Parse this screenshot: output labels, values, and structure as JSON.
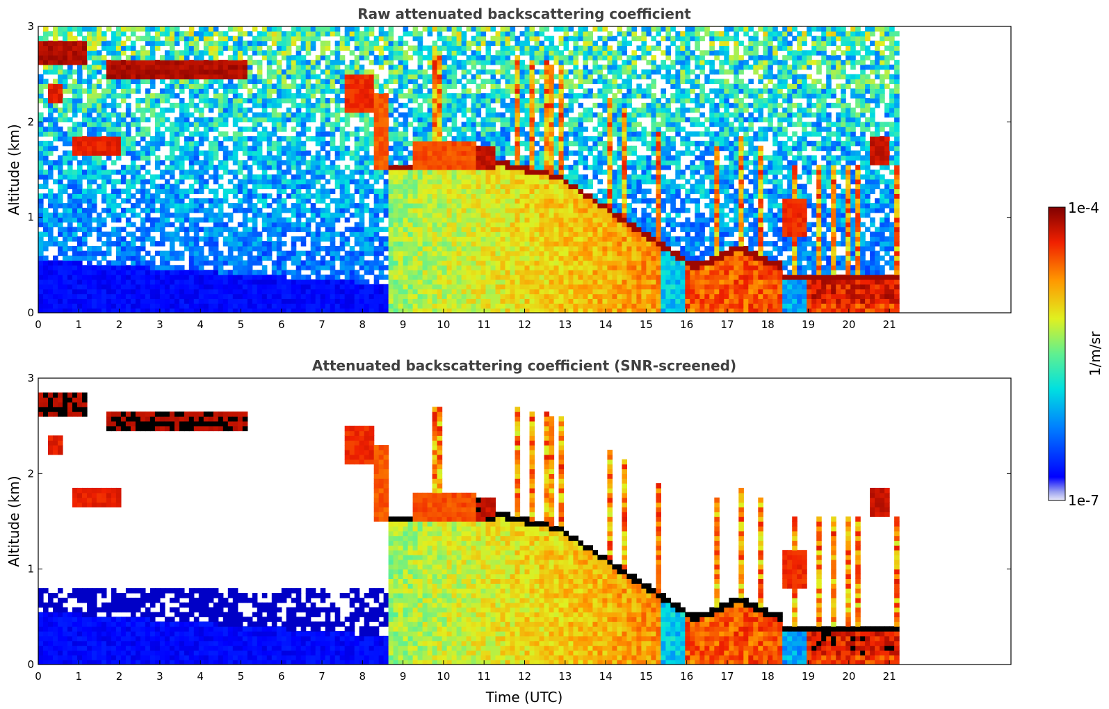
{
  "chart_data": [
    {
      "type": "heatmap",
      "title": "Raw attenuated backscattering coefficient",
      "xlabel": "",
      "ylabel": "Altitude (km)",
      "xlim": [
        0,
        24
      ],
      "ylim": [
        0,
        3
      ],
      "xticks": [
        "0",
        "1",
        "2",
        "3",
        "4",
        "5",
        "6",
        "7",
        "8",
        "9",
        "10",
        "11",
        "12",
        "13",
        "14",
        "15",
        "16",
        "17",
        "18",
        "19",
        "20",
        "21"
      ],
      "yticks": [
        "0",
        "1",
        "2",
        "3"
      ],
      "data_end_time": 21.2,
      "grid": false,
      "colorscale": "jet (log)"
    },
    {
      "type": "heatmap",
      "title": "Attenuated backscattering coefficient (SNR-screened)",
      "xlabel": "Time (UTC)",
      "ylabel": "Altitude (km)",
      "xlim": [
        0,
        24
      ],
      "ylim": [
        0,
        3
      ],
      "xticks": [
        "0",
        "1",
        "2",
        "3",
        "4",
        "5",
        "6",
        "7",
        "8",
        "9",
        "10",
        "11",
        "12",
        "13",
        "14",
        "15",
        "16",
        "17",
        "18",
        "19",
        "20",
        "21"
      ],
      "yticks": [
        "0",
        "1",
        "2",
        "3"
      ],
      "data_end_time": 21.2,
      "grid": false,
      "colorscale": "jet (log)",
      "saturated_color": "#000000"
    }
  ],
  "colorbar": {
    "max_label": "1e-4",
    "min_label": "1e-7",
    "unit_label": "1/m/sr"
  }
}
